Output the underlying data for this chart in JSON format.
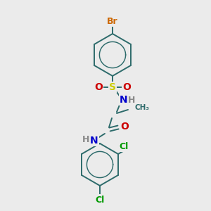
{
  "background_color": "#ebebeb",
  "bond_color": "#2d6b6b",
  "atom_colors": {
    "Br": "#cc6600",
    "S": "#cccc00",
    "O": "#cc0000",
    "N": "#0000cc",
    "Cl": "#009900",
    "H": "#888888"
  },
  "figsize": [
    3.0,
    3.0
  ],
  "dpi": 100
}
